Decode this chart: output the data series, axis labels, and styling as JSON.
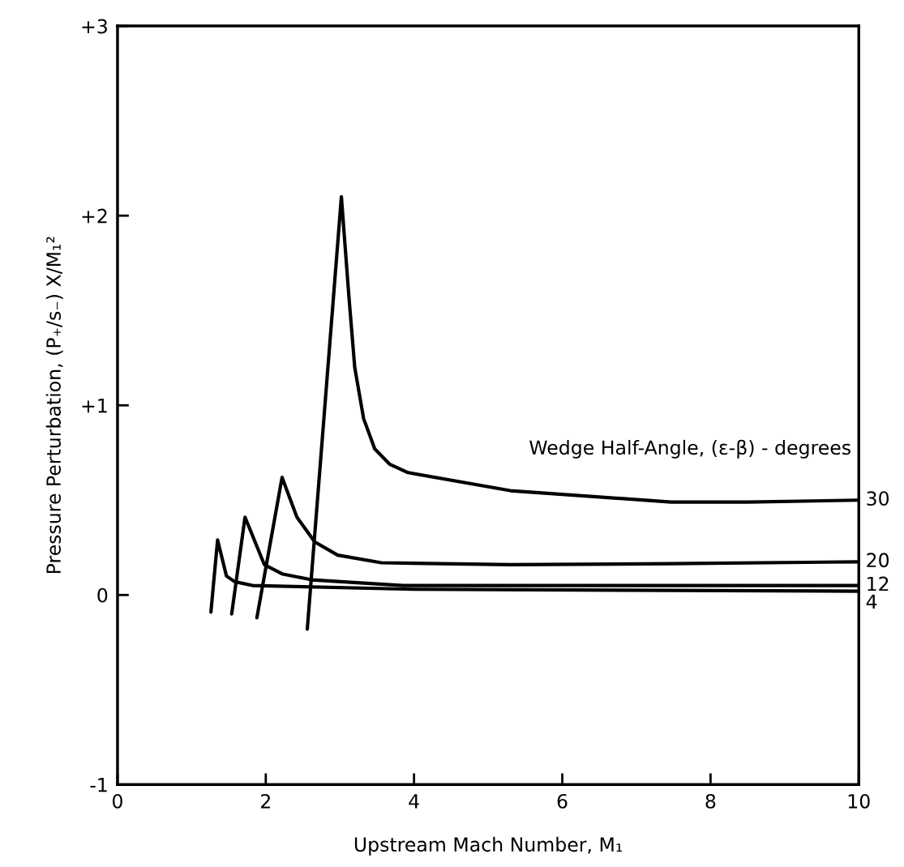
{
  "chart_data": {
    "type": "line",
    "xlabel": "Upstream Mach Number, M₁",
    "ylabel": "Pressure Perturbation, (P₊/s₋) X/M₁²",
    "annotations": [
      "Wedge Half-Angle, (ε-β) - degrees"
    ],
    "xlim": [
      0,
      10
    ],
    "xticks": [
      0,
      2,
      4,
      6,
      8,
      10
    ],
    "ylim": [
      -1,
      3
    ],
    "yticks": [
      {
        "value": -1,
        "label": "-1"
      },
      0,
      {
        "value": 1,
        "label": "+1"
      },
      {
        "value": 2,
        "label": "+2"
      },
      {
        "value": 3,
        "label": "+3"
      }
    ],
    "grid": false,
    "legend": false,
    "marker": "none",
    "line_style": "solid",
    "series": [
      {
        "name": "30",
        "color": "#000000",
        "x": [
          2.56,
          3.02,
          3.12,
          3.2,
          3.32,
          3.47,
          3.67,
          3.92,
          5.3,
          7.47,
          8.5,
          10
        ],
        "values": [
          -0.18,
          2.1,
          1.58,
          1.2,
          0.93,
          0.77,
          0.69,
          0.645,
          0.55,
          0.49,
          0.49,
          0.5
        ]
      },
      {
        "name": "20",
        "color": "#000000",
        "x": [
          1.88,
          2.22,
          2.42,
          2.66,
          2.97,
          3.56,
          5.3,
          7.47,
          10
        ],
        "values": [
          -0.12,
          0.62,
          0.41,
          0.28,
          0.21,
          0.17,
          0.16,
          0.165,
          0.175
        ]
      },
      {
        "name": "12",
        "color": "#000000",
        "x": [
          1.54,
          1.72,
          1.98,
          2.23,
          2.62,
          3.85,
          10
        ],
        "values": [
          -0.1,
          0.41,
          0.16,
          0.11,
          0.08,
          0.05,
          0.05
        ]
      },
      {
        "name": "4",
        "color": "#000000",
        "x": [
          1.26,
          1.35,
          1.47,
          1.58,
          1.82,
          4,
          10
        ],
        "values": [
          -0.09,
          0.29,
          0.1,
          0.07,
          0.05,
          0.03,
          0.02
        ]
      }
    ]
  }
}
